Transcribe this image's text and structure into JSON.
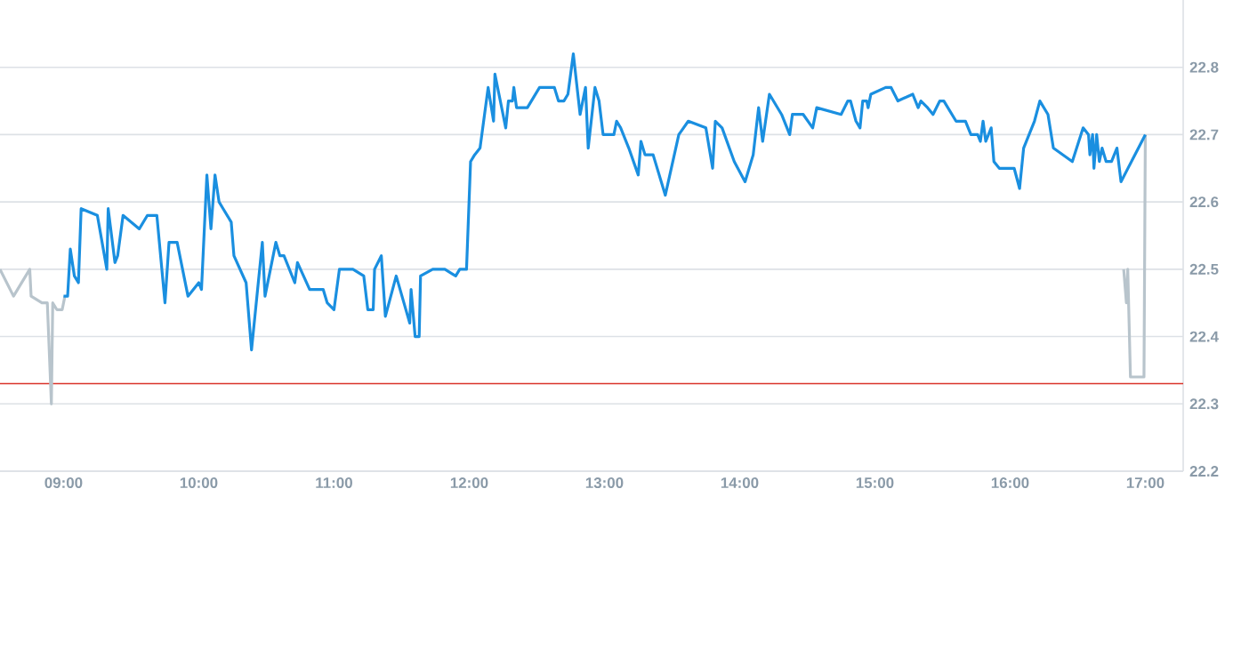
{
  "chart_data": {
    "type": "line",
    "xlim": [
      8.53,
      17.28
    ],
    "ylim": [
      22.2,
      22.9
    ],
    "xticks": [
      {
        "value": 9,
        "label": "09:00"
      },
      {
        "value": 10,
        "label": "10:00"
      },
      {
        "value": 11,
        "label": "11:00"
      },
      {
        "value": 12,
        "label": "12:00"
      },
      {
        "value": 13,
        "label": "13:00"
      },
      {
        "value": 14,
        "label": "14:00"
      },
      {
        "value": 15,
        "label": "15:00"
      },
      {
        "value": 16,
        "label": "16:00"
      },
      {
        "value": 17,
        "label": "17:00"
      }
    ],
    "yticks": [
      22.2,
      22.3,
      22.4,
      22.5,
      22.6,
      22.7,
      22.8
    ],
    "grid": "y",
    "marker": "none",
    "line_style": "solid",
    "ref_lines": [
      {
        "axis": "y",
        "value": 22.33,
        "color": "#d9342b"
      }
    ],
    "series": [
      {
        "color": "#b8c4cc",
        "x": [
          8.53,
          8.63,
          8.75,
          8.76,
          8.84,
          8.88,
          8.91,
          8.92,
          8.95,
          8.99,
          9.01,
          12,
          16.84,
          16.86,
          16.87,
          16.89,
          16.99,
          17.0
        ],
        "values": [
          22.5,
          22.46,
          22.5,
          22.46,
          22.45,
          22.45,
          22.3,
          22.45,
          22.44,
          22.44,
          22.46,
          null,
          22.5,
          22.45,
          22.5,
          22.34,
          22.34,
          22.7
        ]
      },
      {
        "color": "#1a8fe0",
        "x": [
          9.0,
          9.03,
          9.05,
          9.08,
          9.11,
          9.13,
          9.25,
          9.32,
          9.33,
          9.38,
          9.4,
          9.44,
          9.56,
          9.62,
          9.69,
          9.75,
          9.78,
          9.84,
          9.92,
          10.0,
          10.02,
          10.06,
          10.09,
          10.12,
          10.15,
          10.18,
          10.24,
          10.26,
          10.35,
          10.39,
          10.47,
          10.49,
          10.57,
          10.6,
          10.63,
          10.71,
          10.73,
          10.82,
          10.92,
          10.95,
          11.0,
          11.04,
          11.14,
          11.22,
          11.25,
          11.29,
          11.3,
          11.35,
          11.38,
          11.46,
          11.56,
          11.57,
          11.6,
          11.63,
          11.64,
          11.73,
          11.82,
          11.9,
          11.93,
          11.98,
          12.01,
          12.04,
          12.08,
          12.14,
          12.18,
          12.19,
          12.22,
          12.27,
          12.29,
          12.32,
          12.33,
          12.35,
          12.43,
          12.52,
          12.63,
          12.66,
          12.7,
          12.73,
          12.77,
          12.82,
          12.86,
          12.88,
          12.93,
          12.96,
          12.99,
          13.07,
          13.09,
          13.12,
          13.18,
          13.25,
          13.27,
          13.3,
          13.36,
          13.45,
          13.55,
          13.62,
          13.75,
          13.8,
          13.82,
          13.87,
          13.96,
          14.04,
          14.1,
          14.14,
          14.17,
          14.22,
          14.31,
          14.37,
          14.39,
          14.47,
          14.54,
          14.57,
          14.75,
          14.8,
          14.82,
          14.86,
          14.89,
          14.91,
          14.94,
          14.95,
          14.97,
          15.08,
          15.12,
          15.17,
          15.28,
          15.32,
          15.34,
          15.39,
          15.43,
          15.48,
          15.51,
          15.6,
          15.67,
          15.71,
          15.76,
          15.78,
          15.8,
          15.82,
          15.86,
          15.88,
          15.92,
          16.03,
          16.07,
          16.1,
          16.18,
          16.22,
          16.28,
          16.32,
          16.46,
          16.54,
          16.58,
          16.59,
          16.61,
          16.62,
          16.64,
          16.66,
          16.68,
          16.71,
          16.75,
          16.79,
          16.82,
          17.0
        ],
        "values": [
          22.46,
          22.46,
          22.53,
          22.49,
          22.48,
          22.59,
          22.58,
          22.5,
          22.59,
          22.51,
          22.52,
          22.58,
          22.56,
          22.58,
          22.58,
          22.45,
          22.54,
          22.54,
          22.46,
          22.48,
          22.47,
          22.64,
          22.56,
          22.64,
          22.6,
          22.59,
          22.57,
          22.52,
          22.48,
          22.38,
          22.54,
          22.46,
          22.54,
          22.52,
          22.52,
          22.48,
          22.51,
          22.47,
          22.47,
          22.45,
          22.44,
          22.5,
          22.5,
          22.49,
          22.44,
          22.44,
          22.5,
          22.52,
          22.43,
          22.49,
          22.42,
          22.47,
          22.4,
          22.4,
          22.49,
          22.5,
          22.5,
          22.49,
          22.5,
          22.5,
          22.66,
          22.67,
          22.68,
          22.77,
          22.72,
          22.79,
          22.76,
          22.71,
          22.75,
          22.75,
          22.77,
          22.74,
          22.74,
          22.77,
          22.77,
          22.75,
          22.75,
          22.76,
          22.82,
          22.73,
          22.77,
          22.68,
          22.77,
          22.75,
          22.7,
          22.7,
          22.72,
          22.71,
          22.68,
          22.64,
          22.69,
          22.67,
          22.67,
          22.61,
          22.7,
          22.72,
          22.71,
          22.65,
          22.72,
          22.71,
          22.66,
          22.63,
          22.67,
          22.74,
          22.69,
          22.76,
          22.73,
          22.7,
          22.73,
          22.73,
          22.71,
          22.74,
          22.73,
          22.75,
          22.75,
          22.72,
          22.71,
          22.75,
          22.75,
          22.74,
          22.76,
          22.77,
          22.77,
          22.75,
          22.76,
          22.74,
          22.75,
          22.74,
          22.73,
          22.75,
          22.75,
          22.72,
          22.72,
          22.7,
          22.7,
          22.69,
          22.72,
          22.69,
          22.71,
          22.66,
          22.65,
          22.65,
          22.62,
          22.68,
          22.72,
          22.75,
          22.73,
          22.68,
          22.66,
          22.71,
          22.7,
          22.67,
          22.7,
          22.65,
          22.7,
          22.66,
          22.68,
          22.66,
          22.66,
          22.68,
          22.63,
          22.7
        ]
      }
    ]
  }
}
